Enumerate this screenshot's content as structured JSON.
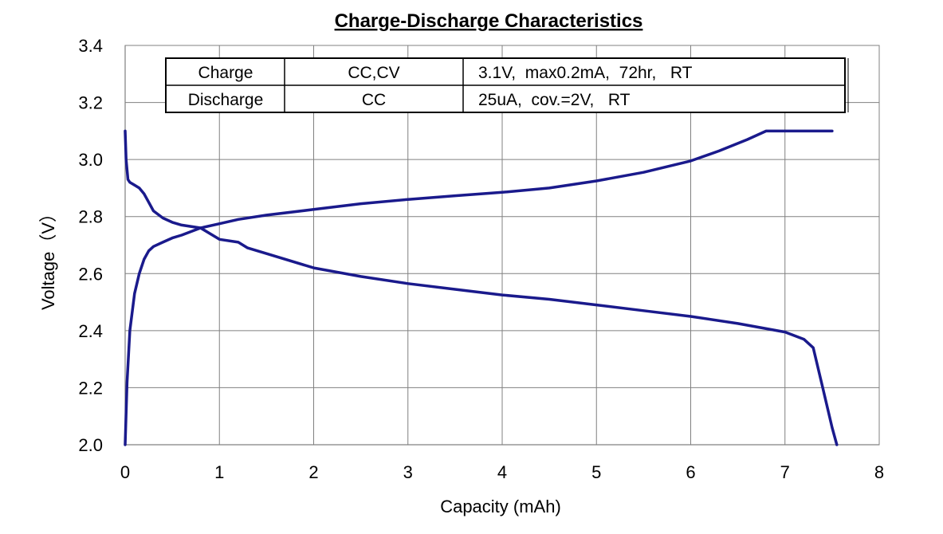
{
  "chart_data": {
    "type": "line",
    "title": "Charge-Discharge Characteristics",
    "xlabel": "Capacity (mAh)",
    "ylabel": "Voltage（V）",
    "xlim": [
      0,
      8
    ],
    "ylim": [
      2.0,
      3.4
    ],
    "x_ticks": [
      "0",
      "1",
      "2",
      "3",
      "4",
      "5",
      "6",
      "7",
      "8"
    ],
    "y_ticks": [
      "2.0",
      "2.2",
      "2.4",
      "2.6",
      "2.8",
      "3.0",
      "3.2",
      "3.4"
    ],
    "grid": true,
    "line_color": "#1a1a8c",
    "legend_table": {
      "rows": [
        [
          "Charge",
          "CC,CV",
          "3.1V,  max0.2mA,  72hr,   RT"
        ],
        [
          "Discharge",
          "CC",
          "25uA,  cov.=2V,   RT"
        ]
      ]
    },
    "series": [
      {
        "x": [
          0.0,
          0.02,
          0.05,
          0.1,
          0.15,
          0.2,
          0.25,
          0.3,
          0.4,
          0.5,
          0.6,
          0.8,
          1.0,
          1.2,
          1.5,
          2.0,
          2.5,
          3.0,
          3.5,
          4.0,
          4.5,
          5.0,
          5.5,
          6.0,
          6.3,
          6.6,
          6.8,
          6.9,
          7.2,
          7.5
        ],
        "y": [
          2.0,
          2.22,
          2.4,
          2.53,
          2.6,
          2.65,
          2.68,
          2.695,
          2.71,
          2.725,
          2.735,
          2.76,
          2.775,
          2.79,
          2.805,
          2.825,
          2.845,
          2.86,
          2.873,
          2.885,
          2.9,
          2.925,
          2.955,
          2.995,
          3.03,
          3.07,
          3.1,
          3.1,
          3.1,
          3.1
        ]
      },
      {
        "x": [
          0.0,
          0.01,
          0.03,
          0.05,
          0.1,
          0.15,
          0.2,
          0.25,
          0.3,
          0.4,
          0.5,
          0.6,
          0.8,
          1.0,
          1.2,
          1.3,
          1.5,
          2.0,
          2.5,
          3.0,
          3.5,
          4.0,
          4.5,
          5.0,
          5.5,
          6.0,
          6.5,
          7.0,
          7.2,
          7.3,
          7.4,
          7.5,
          7.55
        ],
        "y": [
          3.1,
          3.0,
          2.93,
          2.92,
          2.91,
          2.9,
          2.88,
          2.85,
          2.82,
          2.795,
          2.78,
          2.77,
          2.76,
          2.72,
          2.71,
          2.69,
          2.67,
          2.62,
          2.59,
          2.565,
          2.545,
          2.525,
          2.51,
          2.49,
          2.47,
          2.45,
          2.425,
          2.395,
          2.37,
          2.34,
          2.2,
          2.06,
          2.0
        ]
      }
    ]
  }
}
